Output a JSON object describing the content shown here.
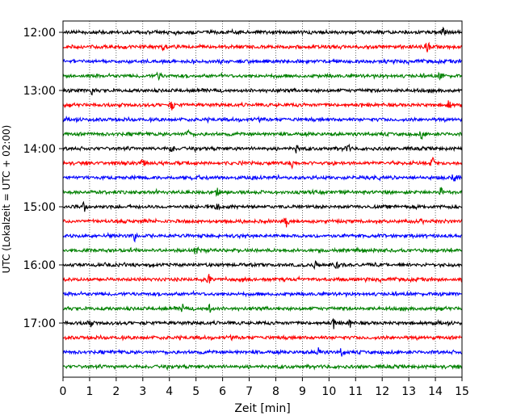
{
  "chart_data": {
    "type": "line",
    "title": "",
    "xlabel": "Zeit  [min]",
    "ylabel": "UTC (Lokalzeit = UTC + 02:00)",
    "xlim": [
      0,
      15
    ],
    "x_ticks": [
      0,
      1,
      2,
      3,
      4,
      5,
      6,
      7,
      8,
      9,
      10,
      11,
      12,
      13,
      14,
      15
    ],
    "x_tick_labels": [
      "0",
      "1",
      "2",
      "3",
      "4",
      "5",
      "6",
      "7",
      "8",
      "9",
      "10",
      "11",
      "12",
      "13",
      "14",
      "15"
    ],
    "y_ticks": [
      {
        "label": "12:00",
        "row": 0
      },
      {
        "label": "13:00",
        "row": 4
      },
      {
        "label": "14:00",
        "row": 8
      },
      {
        "label": "15:00",
        "row": 12
      },
      {
        "label": "16:00",
        "row": 16
      },
      {
        "label": "17:00",
        "row": 20
      }
    ],
    "rows_per_hour": 4,
    "minutes_per_row": 15,
    "grid": "vertical dotted at each minute",
    "series": [
      {
        "start": "12:00",
        "color": "#000000",
        "events": [
          14.3
        ]
      },
      {
        "start": "12:15",
        "color": "#ff0000",
        "events": [
          13.7,
          3.8
        ]
      },
      {
        "start": "12:30",
        "color": "#0000ff",
        "events": []
      },
      {
        "start": "12:45",
        "color": "#008000",
        "events": [
          14.2,
          3.6
        ]
      },
      {
        "start": "13:00",
        "color": "#000000",
        "events": [
          1.1
        ]
      },
      {
        "start": "13:15",
        "color": "#ff0000",
        "events": [
          4.1,
          14.5
        ]
      },
      {
        "start": "13:30",
        "color": "#0000ff",
        "events": []
      },
      {
        "start": "13:45",
        "color": "#008000",
        "events": [
          13.5,
          4.7
        ]
      },
      {
        "start": "14:00",
        "color": "#000000",
        "events": [
          4.1,
          10.7,
          8.8
        ]
      },
      {
        "start": "14:15",
        "color": "#ff0000",
        "events": [
          8.6,
          13.9,
          3.0
        ]
      },
      {
        "start": "14:30",
        "color": "#0000ff",
        "events": [
          14.7
        ]
      },
      {
        "start": "14:45",
        "color": "#008000",
        "events": [
          14.2,
          5.8
        ]
      },
      {
        "start": "15:00",
        "color": "#000000",
        "events": [
          0.8,
          5.8
        ]
      },
      {
        "start": "15:15",
        "color": "#ff0000",
        "events": [
          8.4
        ]
      },
      {
        "start": "15:30",
        "color": "#0000ff",
        "events": [
          2.7
        ]
      },
      {
        "start": "15:45",
        "color": "#008000",
        "events": [
          5.0
        ]
      },
      {
        "start": "16:00",
        "color": "#000000",
        "events": [
          10.3,
          9.5
        ]
      },
      {
        "start": "16:15",
        "color": "#ff0000",
        "events": [
          5.5
        ]
      },
      {
        "start": "16:30",
        "color": "#0000ff",
        "events": []
      },
      {
        "start": "16:45",
        "color": "#008000",
        "events": [
          5.5,
          4.5
        ]
      },
      {
        "start": "17:00",
        "color": "#000000",
        "events": [
          1.0,
          10.2,
          10.8
        ]
      },
      {
        "start": "17:15",
        "color": "#ff0000",
        "events": []
      },
      {
        "start": "17:30",
        "color": "#0000ff",
        "events": [
          10.5,
          9.6
        ]
      },
      {
        "start": "17:45",
        "color": "#008000",
        "events": []
      }
    ]
  }
}
